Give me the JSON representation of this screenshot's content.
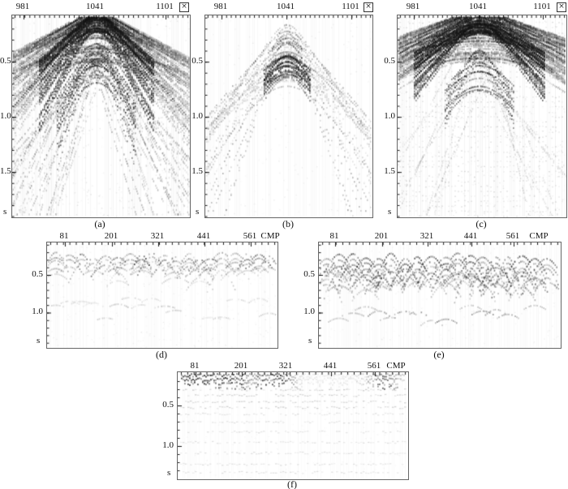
{
  "figure": {
    "panels": [
      {
        "id": "a",
        "caption": "(a)",
        "top_ticks": [
          "981",
          "1041",
          "1101"
        ],
        "y_ticks": [
          "0.5",
          "1.0",
          "1.5"
        ],
        "time_unit": "s",
        "corner_icon": "×"
      },
      {
        "id": "b",
        "caption": "(b)",
        "top_ticks": [
          "981",
          "1041",
          "1101"
        ],
        "y_ticks": [
          "0.5",
          "1.0",
          "1.5"
        ],
        "time_unit": "s",
        "corner_icon": "×"
      },
      {
        "id": "c",
        "caption": "(c)",
        "top_ticks": [
          "981",
          "1041",
          "1101"
        ],
        "y_ticks": [
          "0.5",
          "1.0",
          "1.5"
        ],
        "time_unit": "s",
        "corner_icon": "×"
      },
      {
        "id": "d",
        "caption": "(d)",
        "top_ticks": [
          "81",
          "201",
          "321",
          "441",
          "561"
        ],
        "top_axis_label": "CMP",
        "y_ticks": [
          "0.5",
          "1.0"
        ],
        "time_unit": "s"
      },
      {
        "id": "e",
        "caption": "(e)",
        "top_ticks": [
          "81",
          "201",
          "321",
          "441",
          "561"
        ],
        "top_axis_label": "CMP",
        "y_ticks": [
          "0.5",
          "1.0"
        ],
        "time_unit": "s"
      },
      {
        "id": "f",
        "caption": "(f)",
        "top_ticks": [
          "81",
          "201",
          "321",
          "441",
          "561"
        ],
        "top_axis_label": "CMP",
        "y_ticks": [
          "0.5",
          "1.0"
        ],
        "time_unit": "s"
      }
    ]
  },
  "chart_data": [
    {
      "panel": "(a)",
      "type": "heatmap",
      "title": "seismic shot record (a)",
      "xlabel": "",
      "x_ticks": [
        981,
        1041,
        1101
      ],
      "x_range": [
        970,
        1122
      ],
      "ylabel": "s",
      "y_ticks": [
        0.5,
        1.0,
        1.5
      ],
      "y_range": [
        0.08,
        1.91
      ],
      "grid": false,
      "legend": "none",
      "description": "Dense grayscale seismic record: strong hyperbolic energy with apex near trace 1041 at the top, steeply dipping coherent events fanning downward to about 1.9 s, plus a dark narrow chevron near 0.4-0.7 s at the center."
    },
    {
      "panel": "(b)",
      "type": "heatmap",
      "title": "seismic shot record (b)",
      "xlabel": "",
      "x_ticks": [
        981,
        1041,
        1101
      ],
      "x_range": [
        970,
        1122
      ],
      "ylabel": "s",
      "y_ticks": [
        0.5,
        1.0,
        1.5
      ],
      "y_range": [
        0.08,
        1.91
      ],
      "grid": false,
      "legend": "none",
      "description": "Sparse record: narrow hyperbolic limbs forming an inverted V centered near trace 1041, with a dark apex cluster around 0.45-0.65 s; mostly white background."
    },
    {
      "panel": "(c)",
      "type": "heatmap",
      "title": "seismic shot record (c)",
      "xlabel": "",
      "x_ticks": [
        981,
        1041,
        1101
      ],
      "x_range": [
        970,
        1122
      ],
      "ylabel": "s",
      "y_ticks": [
        0.5,
        1.0,
        1.5
      ],
      "y_range": [
        0.08,
        1.91
      ],
      "grid": false,
      "legend": "none",
      "description": "Dense record similar to (a) but with flatter hyperbola limbs and faint horizontal striping across the panel; dark wedge at top centered at trace 1041."
    },
    {
      "panel": "(d)",
      "type": "heatmap",
      "title": "CMP gathers (d)",
      "xlabel": "CMP",
      "x_ticks": [
        81,
        201,
        321,
        441,
        561
      ],
      "x_range": [
        36,
        630
      ],
      "ylabel": "s",
      "y_ticks": [
        0.5,
        1.0
      ],
      "y_range": [
        0.07,
        1.47
      ],
      "grid": false,
      "legend": "none",
      "description": "Repeated small hyperbolic events near 0.2-0.5 s across all CMP positions with weaker scattered events near 0.8-1.1 s."
    },
    {
      "panel": "(e)",
      "type": "heatmap",
      "title": "CMP gathers (e)",
      "xlabel": "CMP",
      "x_ticks": [
        81,
        201,
        321,
        441,
        561
      ],
      "x_range": [
        40,
        680
      ],
      "ylabel": "s",
      "y_ticks": [
        0.5,
        1.0
      ],
      "y_range": [
        0.07,
        1.47
      ],
      "grid": false,
      "legend": "none",
      "description": "Strong repeated hyperbolic fans across all CMP positions extending down to about 1.0-1.1 s; noticeably darker than (d)."
    },
    {
      "panel": "(f)",
      "type": "heatmap",
      "title": "stacked section (f)",
      "xlabel": "CMP",
      "x_ticks": [
        81,
        201,
        321,
        441,
        561
      ],
      "x_range": [
        35,
        648
      ],
      "ylabel": "s",
      "y_ticks": [
        0.5,
        1.0
      ],
      "y_range": [
        0.09,
        1.41
      ],
      "grid": false,
      "legend": "none",
      "description": "Stacked section: dark shallow energy blobs near 0.1-0.35 s and faint sub-horizontal reflections continuing down to about 1.3 s."
    }
  ]
}
